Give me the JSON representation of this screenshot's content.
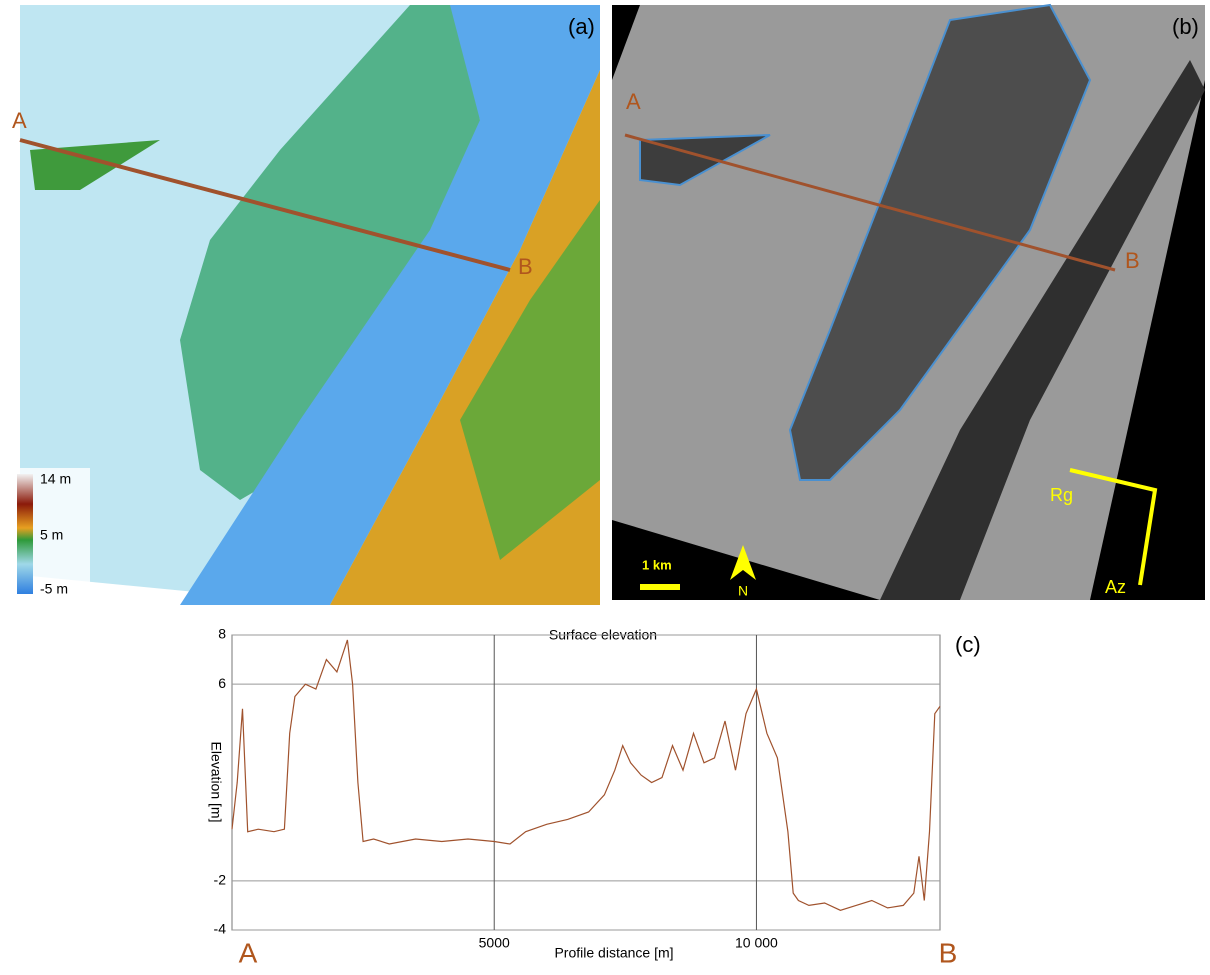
{
  "panels": {
    "a": {
      "label": "(a)",
      "point_a": "A",
      "point_b": "B",
      "legend": [
        "14 m",
        "5 m",
        "-5 m"
      ]
    },
    "b": {
      "label": "(b)",
      "point_a": "A",
      "point_b": "B",
      "scale": "1 km",
      "north": "N",
      "range": "Rg",
      "azimuth": "Az"
    }
  },
  "chart_data": {
    "type": "line",
    "title": "Surface elevation",
    "panel_label": "(c)",
    "xlabel": "Profile distance [m]",
    "ylabel": "Elevation [m]",
    "start_label": "A",
    "end_label": "B",
    "xlim": [
      0,
      13500
    ],
    "ylim": [
      -4,
      8
    ],
    "xticks": [
      5000,
      {
        "value": 10000,
        "label": "10 000"
      }
    ],
    "yticks": [
      8,
      6,
      -2,
      -4
    ],
    "grid": true,
    "series": [
      {
        "name": "Surface elevation",
        "color": "#a0522d",
        "x": [
          0,
          100,
          200,
          300,
          500,
          800,
          1000,
          1100,
          1200,
          1400,
          1600,
          1800,
          2000,
          2200,
          2300,
          2400,
          2500,
          2700,
          3000,
          3500,
          4000,
          4500,
          5000,
          5300,
          5600,
          6000,
          6400,
          6800,
          7100,
          7300,
          7450,
          7600,
          7800,
          8000,
          8200,
          8400,
          8600,
          8800,
          9000,
          9200,
          9400,
          9600,
          9800,
          10000,
          10200,
          10400,
          10600,
          10700,
          10800,
          11000,
          11300,
          11600,
          11900,
          12200,
          12500,
          12800,
          13000,
          13100,
          13200,
          13300,
          13400,
          13500
        ],
        "values": [
          0.1,
          2,
          5,
          0,
          0.1,
          0,
          0.1,
          4,
          5.5,
          6,
          5.8,
          7,
          6.5,
          7.8,
          6,
          2,
          -0.4,
          -0.3,
          -0.5,
          -0.3,
          -0.4,
          -0.3,
          -0.4,
          -0.5,
          0,
          0.3,
          0.5,
          0.8,
          1.5,
          2.5,
          3.5,
          2.8,
          2.3,
          2,
          2.2,
          3.5,
          2.5,
          4,
          2.8,
          3,
          4.5,
          2.5,
          4.8,
          5.8,
          4,
          3,
          0,
          -2.5,
          -2.8,
          -3,
          -2.9,
          -3.2,
          -3,
          -2.8,
          -3.1,
          -3,
          -2.5,
          -1,
          -2.8,
          0,
          4.8,
          5.1
        ]
      }
    ]
  }
}
